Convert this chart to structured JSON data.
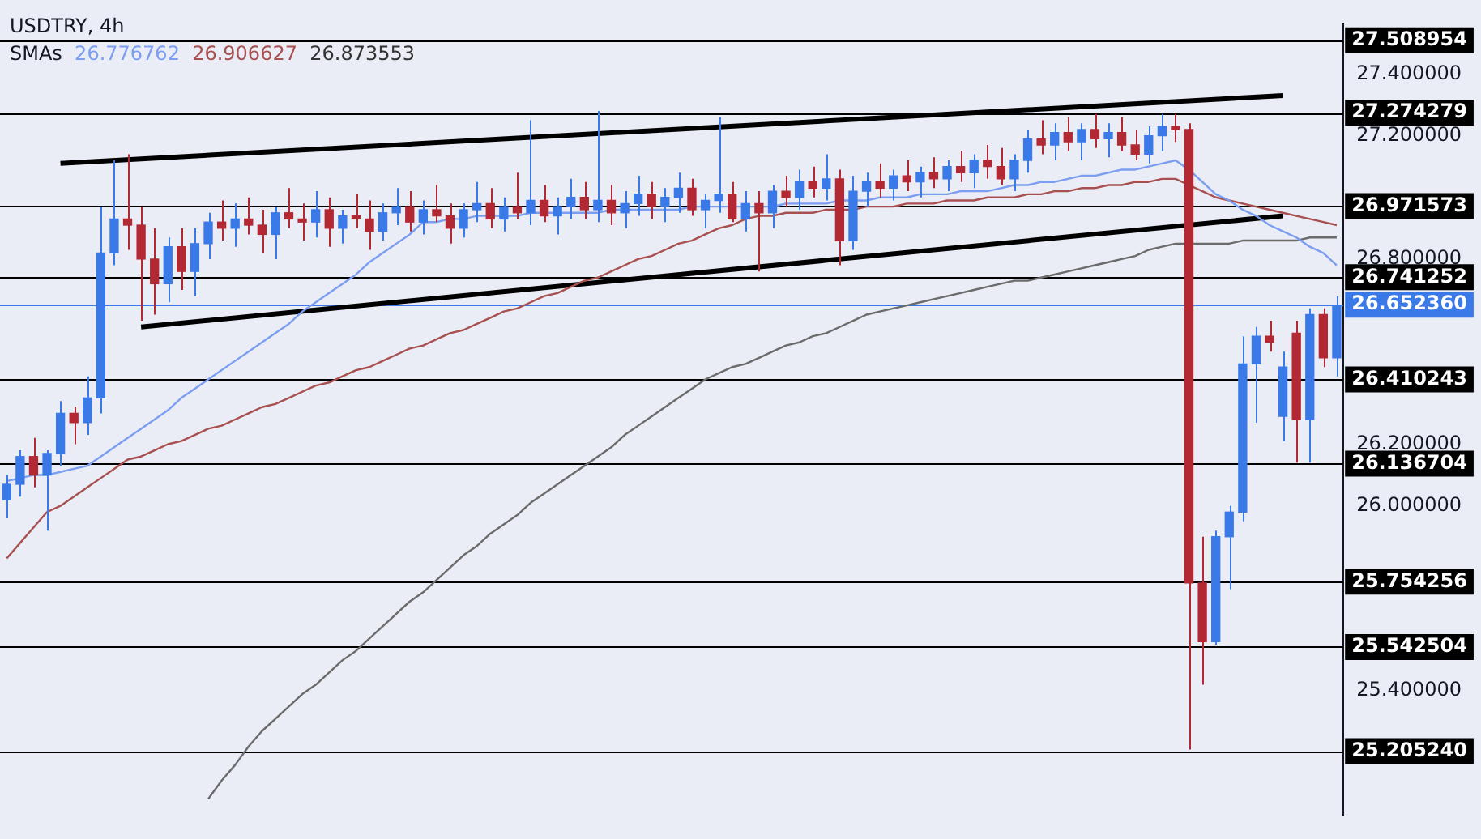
{
  "chart_data": {
    "type": "candlestick",
    "title": "USDTRY, 4h",
    "subtitle": "SMAs 26.776762 26.906627 26.873553",
    "categories": [
      null,
      null,
      null,
      null,
      null,
      null,
      null,
      null,
      null,
      null,
      null,
      null,
      null,
      null,
      null,
      null,
      null,
      null,
      null,
      null,
      null,
      null,
      null,
      null,
      null,
      null,
      null,
      null,
      null,
      null,
      null,
      null,
      null,
      null,
      null,
      null,
      null,
      null,
      null,
      null,
      null,
      null,
      null,
      null,
      null,
      null,
      null,
      null,
      null,
      null,
      null,
      null,
      null,
      null,
      null,
      null,
      null,
      null,
      null,
      null,
      null,
      null,
      null,
      null,
      null,
      null,
      null,
      null,
      null,
      null,
      null,
      null,
      null,
      null,
      null,
      null,
      null,
      null,
      null,
      null,
      null,
      null,
      null,
      null,
      null,
      null,
      null,
      null,
      null,
      null,
      null,
      null,
      null,
      null,
      null,
      null,
      null,
      null,
      null,
      null
    ],
    "ohlc": [
      [
        26.02,
        26.1,
        25.96,
        26.07
      ],
      [
        26.07,
        26.18,
        26.03,
        26.16
      ],
      [
        26.16,
        26.22,
        26.06,
        26.1
      ],
      [
        26.1,
        26.18,
        25.92,
        26.17
      ],
      [
        26.17,
        26.34,
        26.13,
        26.3
      ],
      [
        26.3,
        26.32,
        26.2,
        26.27
      ],
      [
        26.27,
        26.42,
        26.23,
        26.35
      ],
      [
        26.35,
        26.97,
        26.3,
        26.82
      ],
      [
        26.82,
        27.12,
        26.78,
        26.93
      ],
      [
        26.93,
        27.14,
        26.83,
        26.91
      ],
      [
        26.91,
        26.97,
        26.6,
        26.8
      ],
      [
        26.8,
        26.9,
        26.62,
        26.72
      ],
      [
        26.72,
        26.87,
        26.66,
        26.84
      ],
      [
        26.84,
        26.9,
        26.7,
        26.76
      ],
      [
        26.76,
        26.9,
        26.68,
        26.85
      ],
      [
        26.85,
        26.95,
        26.8,
        26.92
      ],
      [
        26.92,
        26.99,
        26.86,
        26.9
      ],
      [
        26.9,
        26.98,
        26.84,
        26.93
      ],
      [
        26.93,
        27.0,
        26.88,
        26.91
      ],
      [
        26.91,
        26.96,
        26.82,
        26.88
      ],
      [
        26.88,
        26.97,
        26.8,
        26.95
      ],
      [
        26.95,
        27.03,
        26.9,
        26.93
      ],
      [
        26.93,
        26.98,
        26.86,
        26.92
      ],
      [
        26.92,
        27.02,
        26.87,
        26.96
      ],
      [
        26.96,
        27.0,
        26.84,
        26.9
      ],
      [
        26.9,
        26.96,
        26.85,
        26.94
      ],
      [
        26.94,
        27.01,
        26.9,
        26.93
      ],
      [
        26.93,
        26.99,
        26.83,
        26.89
      ],
      [
        26.89,
        26.98,
        26.86,
        26.95
      ],
      [
        26.95,
        27.03,
        26.91,
        26.97
      ],
      [
        26.97,
        27.02,
        26.89,
        26.92
      ],
      [
        26.92,
        26.99,
        26.88,
        26.96
      ],
      [
        26.96,
        27.04,
        26.92,
        26.94
      ],
      [
        26.94,
        26.98,
        26.85,
        26.9
      ],
      [
        26.9,
        26.98,
        26.87,
        26.96
      ],
      [
        26.96,
        27.05,
        26.92,
        26.98
      ],
      [
        26.98,
        27.03,
        26.9,
        26.93
      ],
      [
        26.93,
        27.0,
        26.89,
        26.97
      ],
      [
        26.97,
        27.08,
        26.93,
        26.95
      ],
      [
        26.95,
        27.25,
        26.91,
        26.99
      ],
      [
        26.99,
        27.04,
        26.92,
        26.94
      ],
      [
        26.94,
        27.0,
        26.88,
        26.97
      ],
      [
        26.97,
        27.06,
        26.93,
        27.0
      ],
      [
        27.0,
        27.05,
        26.93,
        26.96
      ],
      [
        26.96,
        27.28,
        26.92,
        26.99
      ],
      [
        26.99,
        27.04,
        26.91,
        26.95
      ],
      [
        26.95,
        27.02,
        26.9,
        26.98
      ],
      [
        26.98,
        27.07,
        26.94,
        27.01
      ],
      [
        27.01,
        27.05,
        26.93,
        26.97
      ],
      [
        26.97,
        27.03,
        26.92,
        27.0
      ],
      [
        27.0,
        27.08,
        26.95,
        27.03
      ],
      [
        27.03,
        27.06,
        26.94,
        26.96
      ],
      [
        26.96,
        27.01,
        26.9,
        26.99
      ],
      [
        26.99,
        27.26,
        26.95,
        27.01
      ],
      [
        27.01,
        27.05,
        26.92,
        26.93
      ],
      [
        26.93,
        27.02,
        26.89,
        26.98
      ],
      [
        26.98,
        27.02,
        26.76,
        26.95
      ],
      [
        26.95,
        27.04,
        26.9,
        27.02
      ],
      [
        27.02,
        27.07,
        26.97,
        27.0
      ],
      [
        27.0,
        27.09,
        26.96,
        27.05
      ],
      [
        27.05,
        27.1,
        27.0,
        27.03
      ],
      [
        27.03,
        27.14,
        26.99,
        27.06
      ],
      [
        27.06,
        27.09,
        26.78,
        26.86
      ],
      [
        26.86,
        27.07,
        26.83,
        27.02
      ],
      [
        27.02,
        27.08,
        26.97,
        27.05
      ],
      [
        27.05,
        27.11,
        27.0,
        27.03
      ],
      [
        27.03,
        27.09,
        26.99,
        27.07
      ],
      [
        27.07,
        27.12,
        27.02,
        27.05
      ],
      [
        27.05,
        27.1,
        27.0,
        27.08
      ],
      [
        27.08,
        27.13,
        27.03,
        27.06
      ],
      [
        27.06,
        27.12,
        27.02,
        27.1
      ],
      [
        27.1,
        27.15,
        27.05,
        27.08
      ],
      [
        27.08,
        27.14,
        27.03,
        27.12
      ],
      [
        27.12,
        27.17,
        27.06,
        27.1
      ],
      [
        27.1,
        27.16,
        27.04,
        27.06
      ],
      [
        27.06,
        27.14,
        27.02,
        27.12
      ],
      [
        27.12,
        27.22,
        27.08,
        27.19
      ],
      [
        27.19,
        27.25,
        27.14,
        27.17
      ],
      [
        27.17,
        27.24,
        27.12,
        27.21
      ],
      [
        27.21,
        27.26,
        27.15,
        27.18
      ],
      [
        27.18,
        27.24,
        27.12,
        27.22
      ],
      [
        27.22,
        27.27,
        27.16,
        27.19
      ],
      [
        27.19,
        27.24,
        27.13,
        27.21
      ],
      [
        27.21,
        27.26,
        27.15,
        27.17
      ],
      [
        27.17,
        27.22,
        27.12,
        27.14
      ],
      [
        27.14,
        27.23,
        27.11,
        27.2
      ],
      [
        27.2,
        27.27,
        27.15,
        27.23
      ],
      [
        27.23,
        27.27,
        27.18,
        27.22
      ],
      [
        27.22,
        27.24,
        25.21,
        25.75
      ],
      [
        25.75,
        25.9,
        25.42,
        25.56
      ],
      [
        25.56,
        25.92,
        25.55,
        25.9
      ],
      [
        25.9,
        26.0,
        25.73,
        25.98
      ],
      [
        25.98,
        26.55,
        25.95,
        26.46
      ],
      [
        26.46,
        26.58,
        26.27,
        26.55
      ],
      [
        26.55,
        26.6,
        26.5,
        26.53
      ],
      [
        26.29,
        26.5,
        26.21,
        26.45
      ],
      [
        26.56,
        26.6,
        26.14,
        26.28
      ],
      [
        26.28,
        26.64,
        26.14,
        26.62
      ],
      [
        26.62,
        26.64,
        26.45,
        26.48
      ],
      [
        26.48,
        26.68,
        26.42,
        26.65
      ]
    ],
    "colors": [
      "#3a7ae8",
      "#3a7ae8",
      "#b22833",
      "#3a7ae8",
      "#3a7ae8",
      "#b22833",
      "#3a7ae8",
      "#3a7ae8",
      "#3a7ae8",
      "#b22833",
      "#b22833",
      "#b22833",
      "#3a7ae8",
      "#b22833",
      "#3a7ae8",
      "#3a7ae8",
      "#b22833",
      "#3a7ae8",
      "#b22833",
      "#b22833",
      "#3a7ae8",
      "#b22833",
      "#b22833",
      "#3a7ae8",
      "#b22833",
      "#3a7ae8",
      "#b22833",
      "#b22833",
      "#3a7ae8",
      "#3a7ae8",
      "#b22833",
      "#3a7ae8",
      "#b22833",
      "#b22833",
      "#3a7ae8",
      "#3a7ae8",
      "#b22833",
      "#3a7ae8",
      "#b22833",
      "#3a7ae8",
      "#b22833",
      "#3a7ae8",
      "#3a7ae8",
      "#b22833",
      "#3a7ae8",
      "#b22833",
      "#3a7ae8",
      "#3a7ae8",
      "#b22833",
      "#3a7ae8",
      "#3a7ae8",
      "#b22833",
      "#3a7ae8",
      "#3a7ae8",
      "#b22833",
      "#3a7ae8",
      "#b22833",
      "#3a7ae8",
      "#b22833",
      "#3a7ae8",
      "#b22833",
      "#3a7ae8",
      "#b22833",
      "#3a7ae8",
      "#3a7ae8",
      "#b22833",
      "#3a7ae8",
      "#b22833",
      "#3a7ae8",
      "#b22833",
      "#3a7ae8",
      "#b22833",
      "#3a7ae8",
      "#b22833",
      "#b22833",
      "#3a7ae8",
      "#3a7ae8",
      "#b22833",
      "#3a7ae8",
      "#b22833",
      "#3a7ae8",
      "#b22833",
      "#3a7ae8",
      "#b22833",
      "#b22833",
      "#3a7ae8",
      "#3a7ae8",
      "#b22833",
      "#b22833",
      "#b22833",
      "#3a7ae8",
      "#3a7ae8",
      "#3a7ae8",
      "#3a7ae8",
      "#b22833",
      "#3a7ae8",
      "#b22833",
      "#3a7ae8",
      "#b22833",
      "#3a7ae8"
    ],
    "series": [
      {
        "type": "line",
        "color": "#7c9ef0",
        "values": [
          26.08,
          26.09,
          26.1,
          26.1,
          26.11,
          26.12,
          26.13,
          26.16,
          26.19,
          26.22,
          26.25,
          26.28,
          26.31,
          26.35,
          26.38,
          26.41,
          26.44,
          26.47,
          26.5,
          26.53,
          26.56,
          26.59,
          26.63,
          26.66,
          26.69,
          26.72,
          26.75,
          26.79,
          26.82,
          26.85,
          26.88,
          26.92,
          26.92,
          26.93,
          26.93,
          26.94,
          26.94,
          26.94,
          26.94,
          26.95,
          26.95,
          26.95,
          26.95,
          26.95,
          26.95,
          26.96,
          26.96,
          26.96,
          26.96,
          26.96,
          26.96,
          26.97,
          26.97,
          26.97,
          26.97,
          26.97,
          26.97,
          26.97,
          26.98,
          26.98,
          26.98,
          26.98,
          26.99,
          26.99,
          26.99,
          27.0,
          27.0,
          27.0,
          27.01,
          27.01,
          27.01,
          27.02,
          27.02,
          27.02,
          27.03,
          27.04,
          27.04,
          27.05,
          27.05,
          27.06,
          27.07,
          27.07,
          27.08,
          27.09,
          27.09,
          27.1,
          27.11,
          27.12,
          27.09,
          27.05,
          27.01,
          26.99,
          26.96,
          26.94,
          26.91,
          26.89,
          26.87,
          26.84,
          26.82,
          26.78
        ]
      },
      {
        "type": "line",
        "color": "#a8504f",
        "values": [
          25.83,
          25.88,
          25.93,
          25.98,
          26.0,
          26.03,
          26.06,
          26.09,
          26.12,
          26.15,
          26.16,
          26.18,
          26.2,
          26.21,
          26.23,
          26.25,
          26.26,
          26.28,
          26.3,
          26.32,
          26.33,
          26.35,
          26.37,
          26.39,
          26.4,
          26.42,
          26.44,
          26.45,
          26.47,
          26.49,
          26.51,
          26.52,
          26.54,
          26.56,
          26.57,
          26.59,
          26.61,
          26.63,
          26.64,
          26.66,
          26.68,
          26.69,
          26.71,
          26.73,
          26.74,
          26.76,
          26.78,
          26.8,
          26.81,
          26.83,
          26.85,
          26.86,
          26.88,
          26.9,
          26.91,
          26.93,
          26.94,
          26.94,
          26.95,
          26.95,
          26.95,
          26.96,
          26.96,
          26.96,
          26.97,
          26.97,
          26.97,
          26.98,
          26.98,
          26.98,
          26.99,
          26.99,
          26.99,
          27.0,
          27.0,
          27.0,
          27.01,
          27.01,
          27.02,
          27.02,
          27.03,
          27.03,
          27.04,
          27.04,
          27.05,
          27.05,
          27.06,
          27.06,
          27.04,
          27.02,
          27.0,
          26.99,
          26.98,
          26.97,
          26.96,
          26.95,
          26.94,
          26.93,
          26.92,
          26.91
        ]
      },
      {
        "type": "line",
        "color": "#6b6b6b",
        "values": [
          null,
          null,
          null,
          null,
          null,
          null,
          null,
          null,
          null,
          null,
          null,
          null,
          null,
          null,
          null,
          25.05,
          25.11,
          25.16,
          25.22,
          25.27,
          25.31,
          25.35,
          25.39,
          25.42,
          25.46,
          25.5,
          25.53,
          25.57,
          25.61,
          25.65,
          25.69,
          25.72,
          25.76,
          25.8,
          25.84,
          25.87,
          25.91,
          25.94,
          25.97,
          26.01,
          26.04,
          26.07,
          26.1,
          26.13,
          26.16,
          26.19,
          26.23,
          26.26,
          26.29,
          26.32,
          26.35,
          26.38,
          26.41,
          26.43,
          26.45,
          26.46,
          26.48,
          26.5,
          26.52,
          26.53,
          26.55,
          26.56,
          26.58,
          26.6,
          26.62,
          26.63,
          26.64,
          26.65,
          26.66,
          26.67,
          26.68,
          26.69,
          26.7,
          26.71,
          26.72,
          26.73,
          26.73,
          26.74,
          26.75,
          26.76,
          26.77,
          26.78,
          26.79,
          26.8,
          26.81,
          26.83,
          26.84,
          26.85,
          26.85,
          26.85,
          26.85,
          26.85,
          26.86,
          26.86,
          26.86,
          26.86,
          26.86,
          26.87,
          26.87,
          26.87
        ]
      },
      {
        "type": "line",
        "color": "#000000",
        "values": [
          null,
          null,
          null,
          null,
          27.11,
          null,
          null,
          null,
          null,
          null,
          null,
          null,
          null,
          null,
          null,
          null,
          null,
          null,
          null,
          null,
          null,
          null,
          null,
          null,
          null,
          null,
          null,
          null,
          null,
          null,
          null,
          null,
          null,
          null,
          null,
          null,
          null,
          null,
          null,
          null,
          null,
          null,
          null,
          null,
          null,
          null,
          null,
          null,
          null,
          null,
          null,
          null,
          null,
          null,
          null,
          null,
          null,
          null,
          null,
          null,
          null,
          null,
          null,
          null,
          null,
          null,
          null,
          null,
          null,
          null,
          null,
          null,
          null,
          null,
          null,
          null,
          null,
          null,
          null,
          null,
          null,
          null,
          null,
          null,
          null,
          null,
          null,
          null,
          null,
          null,
          null,
          null,
          null,
          null,
          null,
          27.33,
          null,
          null,
          null,
          null
        ]
      },
      {
        "type": "line",
        "color": "#000000",
        "values": [
          null,
          null,
          null,
          null,
          null,
          null,
          null,
          null,
          null,
          null,
          26.58,
          null,
          null,
          null,
          null,
          null,
          null,
          null,
          null,
          null,
          null,
          null,
          null,
          null,
          null,
          null,
          null,
          null,
          null,
          null,
          null,
          null,
          null,
          null,
          null,
          null,
          null,
          null,
          null,
          null,
          null,
          null,
          null,
          null,
          null,
          null,
          null,
          null,
          null,
          null,
          null,
          null,
          null,
          null,
          null,
          null,
          null,
          null,
          null,
          null,
          null,
          null,
          null,
          null,
          null,
          null,
          null,
          null,
          null,
          null,
          null,
          null,
          null,
          null,
          null,
          null,
          null,
          null,
          null,
          null,
          null,
          null,
          null,
          null,
          null,
          null,
          null,
          null,
          null,
          null,
          null,
          null,
          null,
          null,
          null,
          26.94,
          null,
          null,
          null,
          null
        ]
      }
    ],
    "ref_lines": [
      {
        "axis": "y",
        "value": 27.508954,
        "label": "27.508954",
        "color": "#000000"
      },
      {
        "axis": "y",
        "value": 27.274279,
        "label": "27.274279",
        "color": "#000000"
      },
      {
        "axis": "y",
        "value": 26.971573,
        "label": "26.971573",
        "color": "#000000"
      },
      {
        "axis": "y",
        "value": 26.741252,
        "label": "26.741252",
        "color": "#000000"
      },
      {
        "axis": "y",
        "value": 26.65236,
        "label": "26.652360",
        "color": "#3a7ae8"
      },
      {
        "axis": "y",
        "value": 26.410243,
        "label": "26.410243",
        "color": "#000000"
      },
      {
        "axis": "y",
        "value": 26.136704,
        "label": "26.136704",
        "color": "#000000"
      },
      {
        "axis": "y",
        "value": 25.754256,
        "label": "25.754256",
        "color": "#000000"
      },
      {
        "axis": "y",
        "value": 25.542504,
        "label": "25.542504",
        "color": "#000000"
      },
      {
        "axis": "y",
        "value": 25.20524,
        "label": "25.205240",
        "color": "#000000"
      }
    ],
    "ylim": [
      25.0,
      27.56
    ],
    "yticks": [
      {
        "value": 25.4,
        "label": "25.400000"
      },
      {
        "value": 26.0,
        "label": "26.000000"
      },
      {
        "value": 26.2,
        "label": "26.200000"
      },
      {
        "value": 26.8,
        "label": "26.800000"
      },
      {
        "value": 27.2,
        "label": "27.200000"
      },
      {
        "value": 27.4,
        "label": "27.400000"
      }
    ],
    "tick_labels": "y"
  }
}
